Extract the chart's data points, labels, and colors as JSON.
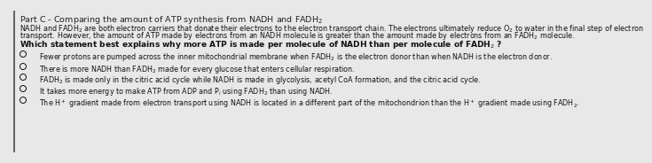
{
  "background_color": "#e8e8e8",
  "title": "Part C - Comparing the amount of ATP synthesis from NADH and FADH$_2$",
  "intro_line1": "NADH and FADH$_2$ are both electron carriers that donate their electrons to the electron transport chain. The electrons ultimately reduce O$_2$ to water in the final step of electron",
  "intro_line2": "transport. However, the amount of ATP made by electrons from an NADH molecule is greater than the amount made by electrons from an FADH$_2$ molecule.",
  "question": "Which statement best explains why more ATP is made per molecule of NADH than per molecule of FADH$_2$ ?",
  "options": [
    "Fewer protons are pumped across the inner mitochondrial membrane when FADH$_2$ is the electron donor than when NADH is the electron donor.",
    "There is more NADH than FADH$_2$ made for every glucose that enters cellular respiration.",
    "FADH$_2$ is made only in the citric acid cycle while NADH is made in glycolysis, acetyl CoA formation, and the citric acid cycle.",
    "It takes more energy to make ATP from ADP and P$_i$ using FADH$_2$ than using NADH.",
    "The H$^+$ gradient made from electron transport using NADH is located in a different part of the mitochondrion than the H$^+$ gradient made using FADH$_2$."
  ],
  "title_fontsize": 6.8,
  "intro_fontsize": 5.8,
  "question_fontsize": 6.5,
  "option_fontsize": 5.8,
  "border_color": "#666666",
  "text_color": "#111111",
  "title_color": "#222222"
}
